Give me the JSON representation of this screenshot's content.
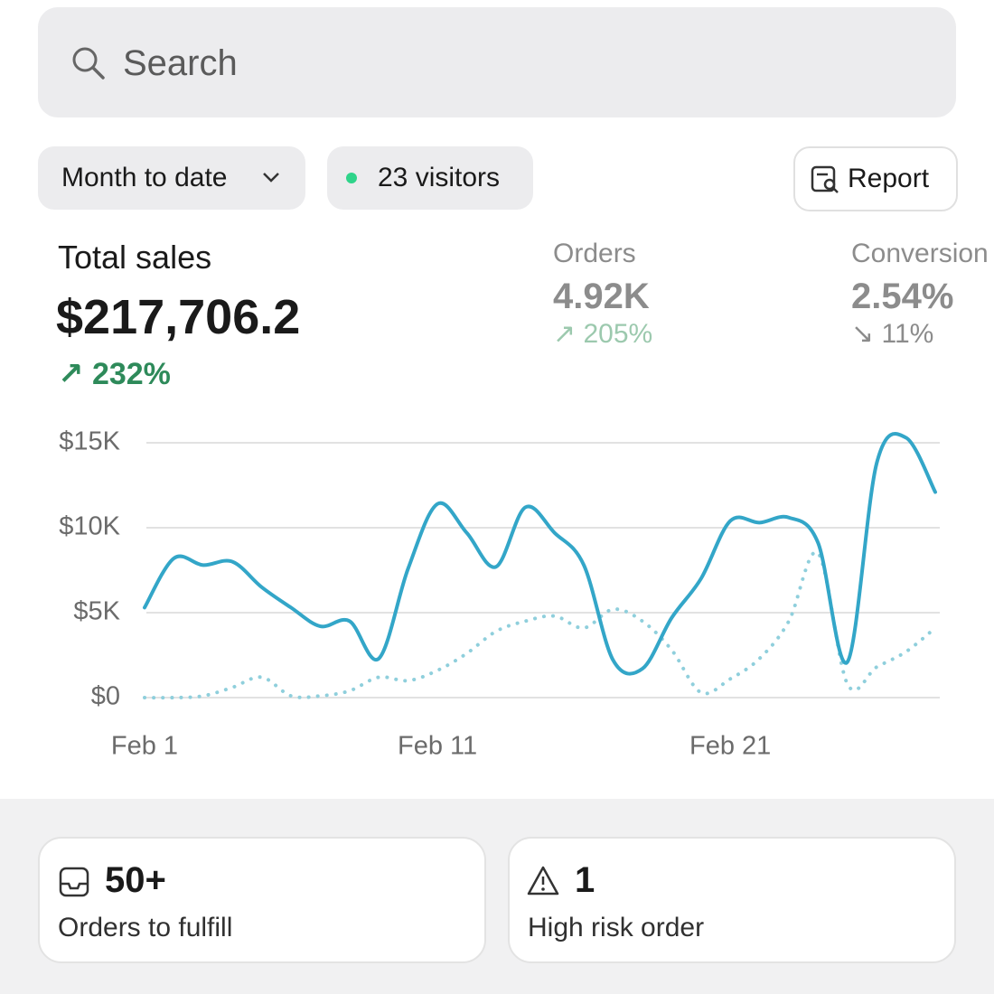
{
  "search": {
    "placeholder": "Search"
  },
  "filters": {
    "range": "Month to date",
    "visitors": "23 visitors",
    "report": "Report"
  },
  "metrics": {
    "total_sales": {
      "label": "Total sales",
      "value": "$217,706.2",
      "change": "232%"
    },
    "orders": {
      "label": "Orders",
      "value": "4.92K",
      "change": "205%"
    },
    "conversion": {
      "label": "Conversion",
      "value": "2.54%",
      "change": "11%"
    }
  },
  "chart_data": {
    "type": "line",
    "categories": [
      "Feb 1",
      null,
      null,
      null,
      null,
      null,
      null,
      null,
      null,
      null,
      "Feb 11",
      null,
      null,
      null,
      null,
      null,
      null,
      null,
      null,
      null,
      "Feb 21",
      null,
      null,
      null,
      null,
      null,
      null,
      null
    ],
    "series": [
      {
        "color": "#33a6c8",
        "style": "solid",
        "values": [
          5300,
          8200,
          7800,
          8000,
          6500,
          5300,
          4200,
          4500,
          2300,
          7600,
          11400,
          9700,
          7700,
          11200,
          9700,
          7800,
          2200,
          1700,
          4700,
          7000,
          10400,
          10300,
          10600,
          9100,
          2100,
          13800,
          15300,
          12100
        ]
      },
      {
        "color": "#8fcfdc",
        "style": "dotted",
        "values": [
          0,
          0,
          100,
          600,
          1200,
          100,
          100,
          400,
          1200,
          1000,
          1600,
          2600,
          3900,
          4500,
          4800,
          4100,
          5200,
          4500,
          2800,
          300,
          1100,
          2300,
          4500,
          8500,
          800,
          1800,
          2700,
          4100
        ]
      }
    ],
    "ylim": [
      0,
      15000
    ],
    "yticks": [
      {
        "value": 0,
        "label": "$0"
      },
      {
        "value": 5000,
        "label": "$5K"
      },
      {
        "value": 10000,
        "label": "$10K"
      },
      {
        "value": 15000,
        "label": "$15K"
      }
    ],
    "grid": true
  },
  "cards": [
    {
      "value": "50+",
      "label": "Orders to fulfill"
    },
    {
      "value": "1",
      "label": "High risk order"
    }
  ]
}
